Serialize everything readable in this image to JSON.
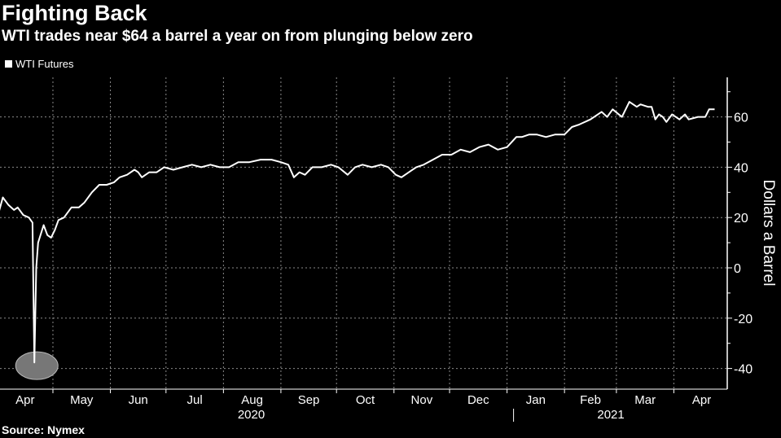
{
  "title": "Fighting Back",
  "subtitle": "WTI trades near $64 a barrel a year on from plunging below zero",
  "source": "Source: Nymex",
  "chart_data": {
    "type": "line",
    "title": "Fighting Back",
    "xlabel": "",
    "ylabel": "Dollars a Barrel",
    "ylim": [
      -48,
      76
    ],
    "yticks": [
      -40,
      -20,
      0,
      20,
      40,
      60
    ],
    "ytick_labels": [
      "-40",
      "-20",
      "0",
      "20",
      "40",
      "60"
    ],
    "x_unit": "days since 2020-04-01",
    "month_labels": [
      {
        "label": "Apr",
        "start": 0
      },
      {
        "label": "May",
        "start": 30
      },
      {
        "label": "Jun",
        "start": 61
      },
      {
        "label": "Jul",
        "start": 91
      },
      {
        "label": "Aug",
        "start": 122
      },
      {
        "label": "Sep",
        "start": 153
      },
      {
        "label": "Oct",
        "start": 183
      },
      {
        "label": "Nov",
        "start": 214
      },
      {
        "label": "Dec",
        "start": 244
      },
      {
        "label": "Jan",
        "start": 275
      },
      {
        "label": "Feb",
        "start": 306
      },
      {
        "label": "Mar",
        "start": 334
      },
      {
        "label": "Apr",
        "start": 365
      }
    ],
    "year_labels": [
      {
        "label": "2020",
        "center": 137
      },
      {
        "label": "2021",
        "center": 331
      }
    ],
    "year_boundary": 275,
    "grid": true,
    "legend": {
      "position": "top-left",
      "entries": [
        "WTI Futures"
      ]
    },
    "highlight": {
      "day": 20,
      "value": -37.6
    },
    "series": [
      {
        "name": "WTI Futures",
        "color": "#ffffff",
        "points": [
          [
            0,
            20
          ],
          [
            3,
            28
          ],
          [
            6,
            25
          ],
          [
            9,
            23
          ],
          [
            11,
            24
          ],
          [
            14,
            21
          ],
          [
            17,
            20
          ],
          [
            19,
            18
          ],
          [
            20,
            -37.6
          ],
          [
            21,
            0
          ],
          [
            22,
            10
          ],
          [
            25,
            17
          ],
          [
            27,
            13
          ],
          [
            29,
            12
          ],
          [
            31,
            15
          ],
          [
            33,
            19
          ],
          [
            36,
            20
          ],
          [
            40,
            24
          ],
          [
            44,
            24
          ],
          [
            47,
            26
          ],
          [
            51,
            30
          ],
          [
            55,
            33
          ],
          [
            59,
            33
          ],
          [
            63,
            34
          ],
          [
            66,
            36
          ],
          [
            70,
            37
          ],
          [
            74,
            39
          ],
          [
            76,
            38
          ],
          [
            78,
            36
          ],
          [
            82,
            38
          ],
          [
            86,
            38
          ],
          [
            90,
            40
          ],
          [
            95,
            39
          ],
          [
            100,
            40
          ],
          [
            105,
            41
          ],
          [
            110,
            40
          ],
          [
            115,
            41
          ],
          [
            120,
            40
          ],
          [
            125,
            40
          ],
          [
            130,
            42
          ],
          [
            136,
            42
          ],
          [
            142,
            43
          ],
          [
            148,
            43
          ],
          [
            153,
            42
          ],
          [
            157,
            41
          ],
          [
            160,
            36
          ],
          [
            163,
            38
          ],
          [
            166,
            37
          ],
          [
            170,
            40
          ],
          [
            175,
            40
          ],
          [
            180,
            41
          ],
          [
            184,
            40
          ],
          [
            189,
            37
          ],
          [
            193,
            40
          ],
          [
            197,
            41
          ],
          [
            202,
            40
          ],
          [
            207,
            41
          ],
          [
            211,
            40
          ],
          [
            215,
            37
          ],
          [
            218,
            36
          ],
          [
            222,
            38
          ],
          [
            226,
            40
          ],
          [
            230,
            41
          ],
          [
            235,
            43
          ],
          [
            240,
            45
          ],
          [
            245,
            45
          ],
          [
            250,
            47
          ],
          [
            255,
            46
          ],
          [
            260,
            48
          ],
          [
            265,
            49
          ],
          [
            270,
            47
          ],
          [
            275,
            48
          ],
          [
            280,
            52
          ],
          [
            283,
            52
          ],
          [
            287,
            53
          ],
          [
            291,
            53
          ],
          [
            296,
            52
          ],
          [
            301,
            53
          ],
          [
            306,
            53
          ],
          [
            310,
            56
          ],
          [
            314,
            57
          ],
          [
            320,
            59
          ],
          [
            326,
            62
          ],
          [
            329,
            60
          ],
          [
            332,
            63
          ],
          [
            337,
            60
          ],
          [
            341,
            66
          ],
          [
            345,
            64
          ],
          [
            347,
            65
          ],
          [
            351,
            64
          ],
          [
            353,
            64
          ],
          [
            355,
            59
          ],
          [
            357,
            61
          ],
          [
            359,
            60
          ],
          [
            361,
            58
          ],
          [
            364,
            61
          ],
          [
            366,
            60
          ],
          [
            368,
            59
          ],
          [
            371,
            61
          ],
          [
            373,
            59
          ],
          [
            378,
            60
          ],
          [
            382,
            60
          ],
          [
            384,
            63
          ],
          [
            387,
            63
          ]
        ]
      }
    ]
  }
}
